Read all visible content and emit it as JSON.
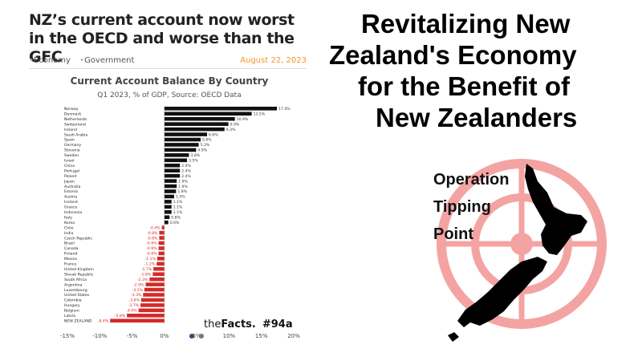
{
  "article": {
    "headline": "NZ’s current account now worst in the OECD and worse than the GFC",
    "categories": [
      "Economy",
      "Government"
    ],
    "date": "August 22, 2023"
  },
  "brand": {
    "name_prefix": "the",
    "name_bold": "Facts.",
    "tag": "#94a"
  },
  "right_title": [
    "Revitalizing New",
    "Zealand's Economy",
    "for the Benefit of",
    "New Zealanders"
  ],
  "logo": {
    "lines": [
      "Operation",
      "Tipping",
      "Point"
    ]
  },
  "colors": {
    "positive": "#111111",
    "negative": "#d32a2a",
    "accent_date": "#f0962b",
    "target": "#f4a3a3"
  },
  "chart_data": {
    "type": "bar",
    "orientation": "horizontal",
    "title": "Current Account Balance By Country",
    "subtitle": "Q1 2023, % of GDP, Source: OECD Data",
    "xlim": [
      -15,
      20
    ],
    "xticks": [
      "-15%",
      "-10%",
      "-5%",
      "0%",
      "5%",
      "10%",
      "15%",
      "20%"
    ],
    "categories": [
      "Norway",
      "Denmark",
      "Netherlands",
      "Switzerland",
      "Ireland",
      "Saudi Arabia",
      "Spain",
      "Germany",
      "Slovenia",
      "Sweden",
      "Israel",
      "China",
      "Portugal",
      "Poland",
      "Japan",
      "Australia",
      "Estonia",
      "Austria",
      "Iceland",
      "Greece",
      "Indonesia",
      "Italy",
      "Korea",
      "Chile",
      "India",
      "Czech Republic",
      "Brazil",
      "Canada",
      "Finland",
      "Mexico",
      "France",
      "United Kingdom",
      "Slovak Republic",
      "South Africa",
      "Argentina",
      "Luxembourg",
      "United States",
      "Colombia",
      "Hungary",
      "Belgium",
      "Latvia",
      "NEW ZEALAND"
    ],
    "values": [
      17.4,
      13.5,
      10.9,
      9.9,
      9.3,
      6.6,
      5.6,
      5.3,
      4.9,
      3.8,
      3.5,
      2.4,
      2.4,
      2.4,
      1.9,
      1.9,
      1.8,
      1.5,
      1.1,
      1.1,
      1.1,
      0.8,
      0.6,
      -0.4,
      -0.8,
      -0.8,
      -0.9,
      -0.9,
      -0.9,
      -1.1,
      -1.2,
      -1.7,
      -1.8,
      -2.3,
      -2.9,
      -3.1,
      -3.3,
      -3.6,
      -3.7,
      -4.0,
      -5.8,
      -8.4
    ],
    "value_labels": [
      "17.4%",
      "13.5%",
      "10.9%",
      "9.9%",
      "9.3%",
      "6.6%",
      "5.6%",
      "5.3%",
      "4.9%",
      "3.8%",
      "3.5%",
      "2.4%",
      "2.4%",
      "2.4%",
      "1.9%",
      "1.9%",
      "1.8%",
      "1.5%",
      "1.1%",
      "1.1%",
      "1.1%",
      "0.8%",
      "0.6%",
      "-0.4%",
      "-0.8%",
      "-0.8%",
      "-0.9%",
      "-0.9%",
      "-0.9%",
      "-1.1%",
      "-1.2%",
      "-1.7%",
      "-1.8%",
      "-2.3%",
      "-2.9%",
      "-3.1%",
      "-3.3%",
      "-3.6%",
      "-3.7%",
      "-4.0%",
      "-5.8%",
      "-8.4%"
    ],
    "grid": false,
    "legend": "none"
  }
}
